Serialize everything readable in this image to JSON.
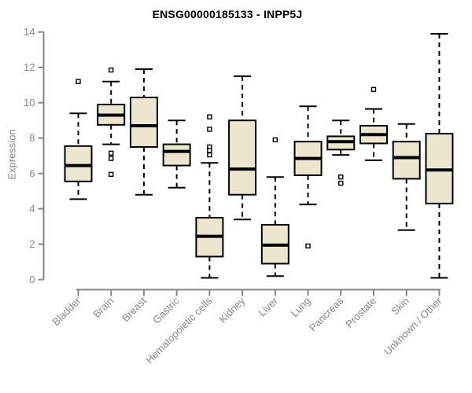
{
  "title": "ENSG00000185133 - INPP5J",
  "y_axis_label": "Expression",
  "chart_data": {
    "type": "boxplot",
    "title": "ENSG00000185133 - INPP5J",
    "xlabel": "",
    "ylabel": "Expression",
    "ylim": [
      0,
      14
    ],
    "y_ticks": [
      0,
      2,
      4,
      6,
      8,
      10,
      12,
      14
    ],
    "grid": false,
    "legend": false,
    "categories": [
      "Bladder",
      "Brain",
      "Breast",
      "Gastric",
      "Hematopoietic cells",
      "Kidney",
      "Liver",
      "Lung",
      "Pancreas",
      "Prostate",
      "Skin",
      "Unknown / Other"
    ],
    "boxes": [
      {
        "category": "Bladder",
        "whisker_low": 4.55,
        "q1": 5.55,
        "median": 6.45,
        "q3": 7.55,
        "whisker_high": 9.4,
        "outliers": [
          11.2
        ]
      },
      {
        "category": "Brain",
        "whisker_low": 7.65,
        "q1": 8.75,
        "median": 9.3,
        "q3": 9.9,
        "whisker_high": 11.2,
        "outliers": [
          11.85,
          7.15,
          6.85,
          5.95
        ]
      },
      {
        "category": "Breast",
        "whisker_low": 4.8,
        "q1": 7.5,
        "median": 8.7,
        "q3": 10.3,
        "whisker_high": 11.9,
        "outliers": []
      },
      {
        "category": "Gastric",
        "whisker_low": 5.2,
        "q1": 6.45,
        "median": 7.25,
        "q3": 7.65,
        "whisker_high": 9.0,
        "outliers": []
      },
      {
        "category": "Hematopoietic cells",
        "whisker_low": 0.1,
        "q1": 1.3,
        "median": 2.45,
        "q3": 3.5,
        "whisker_high": 6.6,
        "outliers": [
          9.2,
          8.5,
          7.5,
          7.3,
          7.05
        ]
      },
      {
        "category": "Kidney",
        "whisker_low": 3.4,
        "q1": 4.8,
        "median": 6.25,
        "q3": 9.0,
        "whisker_high": 11.5,
        "outliers": []
      },
      {
        "category": "Liver",
        "whisker_low": 0.2,
        "q1": 0.9,
        "median": 1.95,
        "q3": 3.1,
        "whisker_high": 5.8,
        "outliers": [
          7.9
        ]
      },
      {
        "category": "Lung",
        "whisker_low": 4.25,
        "q1": 5.9,
        "median": 6.85,
        "q3": 7.8,
        "whisker_high": 9.8,
        "outliers": [
          1.9
        ]
      },
      {
        "category": "Pancreas",
        "whisker_low": 7.05,
        "q1": 7.35,
        "median": 7.8,
        "q3": 8.1,
        "whisker_high": 9.0,
        "outliers": [
          5.8,
          5.45
        ]
      },
      {
        "category": "Prostate",
        "whisker_low": 6.75,
        "q1": 7.7,
        "median": 8.2,
        "q3": 8.7,
        "whisker_high": 9.65,
        "outliers": [
          10.75
        ]
      },
      {
        "category": "Skin",
        "whisker_low": 2.8,
        "q1": 5.7,
        "median": 6.9,
        "q3": 7.8,
        "whisker_high": 8.8,
        "outliers": []
      },
      {
        "category": "Unknown / Other",
        "whisker_low": 0.1,
        "q1": 4.3,
        "median": 6.2,
        "q3": 8.25,
        "whisker_high": 13.9,
        "outliers": []
      }
    ],
    "colors": {
      "box_fill": "#ebe6cd",
      "box_stroke": "#000000",
      "median": "#000000",
      "axis": "#878787",
      "tick_text": "#878787",
      "title_text": "#000000",
      "background": "#ffffff"
    }
  }
}
